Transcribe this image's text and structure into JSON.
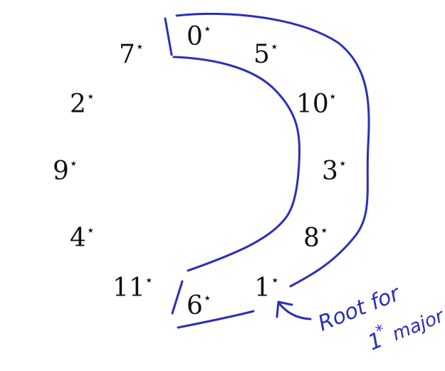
{
  "colors": {
    "ink": "#111111",
    "pen": "#2b2fb8"
  },
  "circle_labels": [
    {
      "value": "0",
      "mark": "⋆"
    },
    {
      "value": "5",
      "mark": "⋆"
    },
    {
      "value": "10",
      "mark": "⋆"
    },
    {
      "value": "3",
      "mark": "⋆"
    },
    {
      "value": "8",
      "mark": "⋆"
    },
    {
      "value": "1",
      "mark": "⋆"
    },
    {
      "value": "6",
      "mark": "⋆"
    },
    {
      "value": "11",
      "mark": "⋆"
    },
    {
      "value": "4",
      "mark": "⋆"
    },
    {
      "value": "9",
      "mark": "⋆"
    },
    {
      "value": "2",
      "mark": "⋆"
    },
    {
      "value": "7",
      "mark": "⋆"
    }
  ],
  "annotation": {
    "line1": "Root for",
    "line2_number": "1",
    "line2_mark": "*",
    "line2_word": "major"
  }
}
